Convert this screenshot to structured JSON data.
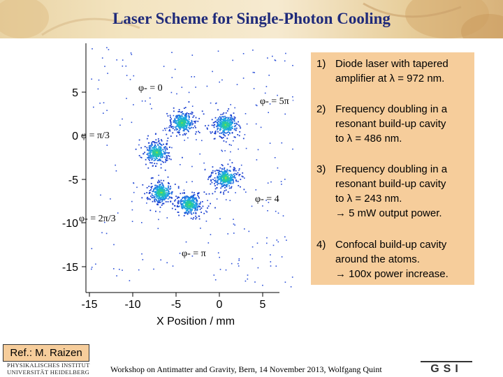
{
  "title": "Laser Scheme for Single-Photon Cooling",
  "plot": {
    "y_ticks": [
      "5",
      "0",
      "-5",
      "-10",
      "-15"
    ],
    "x_ticks": [
      "-15",
      "-10",
      "-5",
      "0",
      "5"
    ],
    "xlabel": "X Position / mm",
    "phase_labels": [
      "φ- = 0",
      "φ- = 5π",
      "φ = π/3",
      "φ- = 4",
      "φ- = 2π/3",
      "φ- = π"
    ]
  },
  "info": [
    {
      "num": "1)",
      "lines": [
        "Diode laser with tapered",
        "amplifier at λ = 972 nm."
      ]
    },
    {
      "num": "2)",
      "lines": [
        "Frequency doubling in a",
        "resonant build-up cavity",
        "to λ = 486 nm."
      ]
    },
    {
      "num": "3)",
      "lines": [
        "Frequency doubling in a",
        "resonant build-up cavity",
        "to λ = 243 nm.",
        "→ 5 mW output power."
      ]
    },
    {
      "num": "4)",
      "lines": [
        "Confocal build-up cavity",
        "around the atoms.",
        "→ 100x power increase."
      ]
    }
  ],
  "ref": "Ref.: M. Raizen",
  "institute": [
    "PHYSIKALISCHES INSTITUT",
    "UNIVERSITÄT HEIDELBERG"
  ],
  "footer": "Workshop on Antimatter and Gravity, Bern, 14 November 2013,  Wolfgang Quint",
  "logo_text": "GSI"
}
